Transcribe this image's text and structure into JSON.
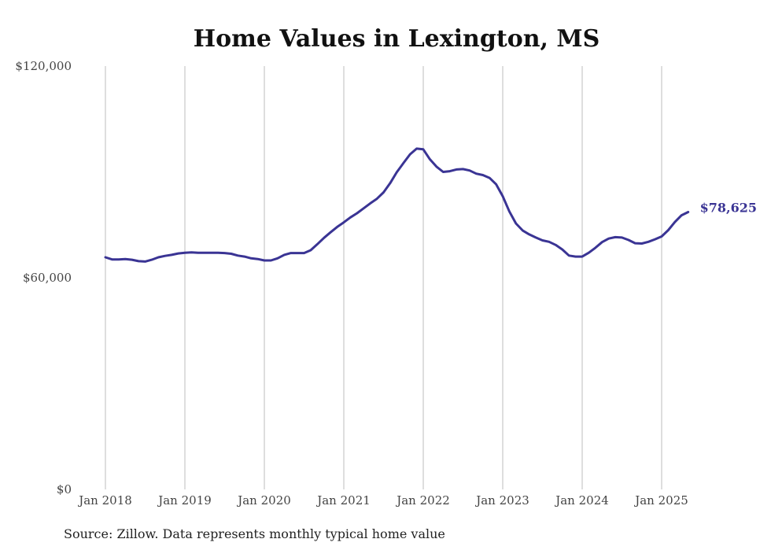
{
  "chart_data": {
    "type": "line",
    "title": "Home Values in Lexington, MS",
    "xlabel": "",
    "ylabel": "",
    "ylim": [
      0,
      120000
    ],
    "grid": "vertical",
    "y_ticks": [
      {
        "value": 0,
        "label": "$0"
      },
      {
        "value": 60000,
        "label": "$60,000"
      },
      {
        "value": 120000,
        "label": "$120,000"
      }
    ],
    "x_ticks": [
      {
        "value": "2018-01",
        "label": "Jan 2018"
      },
      {
        "value": "2019-01",
        "label": "Jan 2019"
      },
      {
        "value": "2020-01",
        "label": "Jan 2020"
      },
      {
        "value": "2021-01",
        "label": "Jan 2021"
      },
      {
        "value": "2022-01",
        "label": "Jan 2022"
      },
      {
        "value": "2023-01",
        "label": "Jan 2023"
      },
      {
        "value": "2024-01",
        "label": "Jan 2024"
      },
      {
        "value": "2025-01",
        "label": "Jan 2025"
      }
    ],
    "series": [
      {
        "name": "",
        "color": "#3a3494",
        "end_label": "$78,625",
        "x": [
          "2018-01",
          "2018-02",
          "2018-03",
          "2018-04",
          "2018-05",
          "2018-06",
          "2018-07",
          "2018-08",
          "2018-09",
          "2018-10",
          "2018-11",
          "2018-12",
          "2019-01",
          "2019-02",
          "2019-03",
          "2019-04",
          "2019-05",
          "2019-06",
          "2019-07",
          "2019-08",
          "2019-09",
          "2019-10",
          "2019-11",
          "2019-12",
          "2020-01",
          "2020-02",
          "2020-03",
          "2020-04",
          "2020-05",
          "2020-06",
          "2020-07",
          "2020-08",
          "2020-09",
          "2020-10",
          "2020-11",
          "2020-12",
          "2021-01",
          "2021-02",
          "2021-03",
          "2021-04",
          "2021-05",
          "2021-06",
          "2021-07",
          "2021-08",
          "2021-09",
          "2021-10",
          "2021-11",
          "2021-12",
          "2022-01",
          "2022-02",
          "2022-03",
          "2022-04",
          "2022-05",
          "2022-06",
          "2022-07",
          "2022-08",
          "2022-09",
          "2022-10",
          "2022-11",
          "2022-12",
          "2023-01",
          "2023-02",
          "2023-03",
          "2023-04",
          "2023-05",
          "2023-06",
          "2023-07",
          "2023-08",
          "2023-09",
          "2023-10",
          "2023-11",
          "2023-12",
          "2024-01",
          "2024-02",
          "2024-03",
          "2024-04",
          "2024-05",
          "2024-06",
          "2024-07",
          "2024-08",
          "2024-09",
          "2024-10",
          "2024-11",
          "2024-12",
          "2025-01",
          "2025-02",
          "2025-03",
          "2025-04",
          "2025-05"
        ],
        "values": [
          65800,
          65200,
          65200,
          65300,
          65100,
          64700,
          64600,
          65100,
          65800,
          66200,
          66500,
          66900,
          67100,
          67200,
          67100,
          67100,
          67100,
          67100,
          67000,
          66800,
          66300,
          66000,
          65500,
          65300,
          64900,
          64900,
          65500,
          66500,
          67000,
          67000,
          67000,
          67800,
          69500,
          71300,
          72900,
          74400,
          75700,
          77100,
          78300,
          79700,
          81100,
          82400,
          84200,
          86800,
          89900,
          92500,
          95000,
          96600,
          96400,
          93600,
          91500,
          90000,
          90200,
          90700,
          90800,
          90400,
          89500,
          89100,
          88300,
          86500,
          83100,
          78800,
          75400,
          73400,
          72300,
          71400,
          70600,
          70200,
          69300,
          68000,
          66300,
          66000,
          66000,
          67100,
          68500,
          70100,
          71100,
          71500,
          71400,
          70700,
          69800,
          69700,
          70200,
          70900,
          71700,
          73500,
          75800,
          77700,
          78625
        ]
      }
    ]
  },
  "source_note": "Source: Zillow. Data represents monthly typical home value"
}
